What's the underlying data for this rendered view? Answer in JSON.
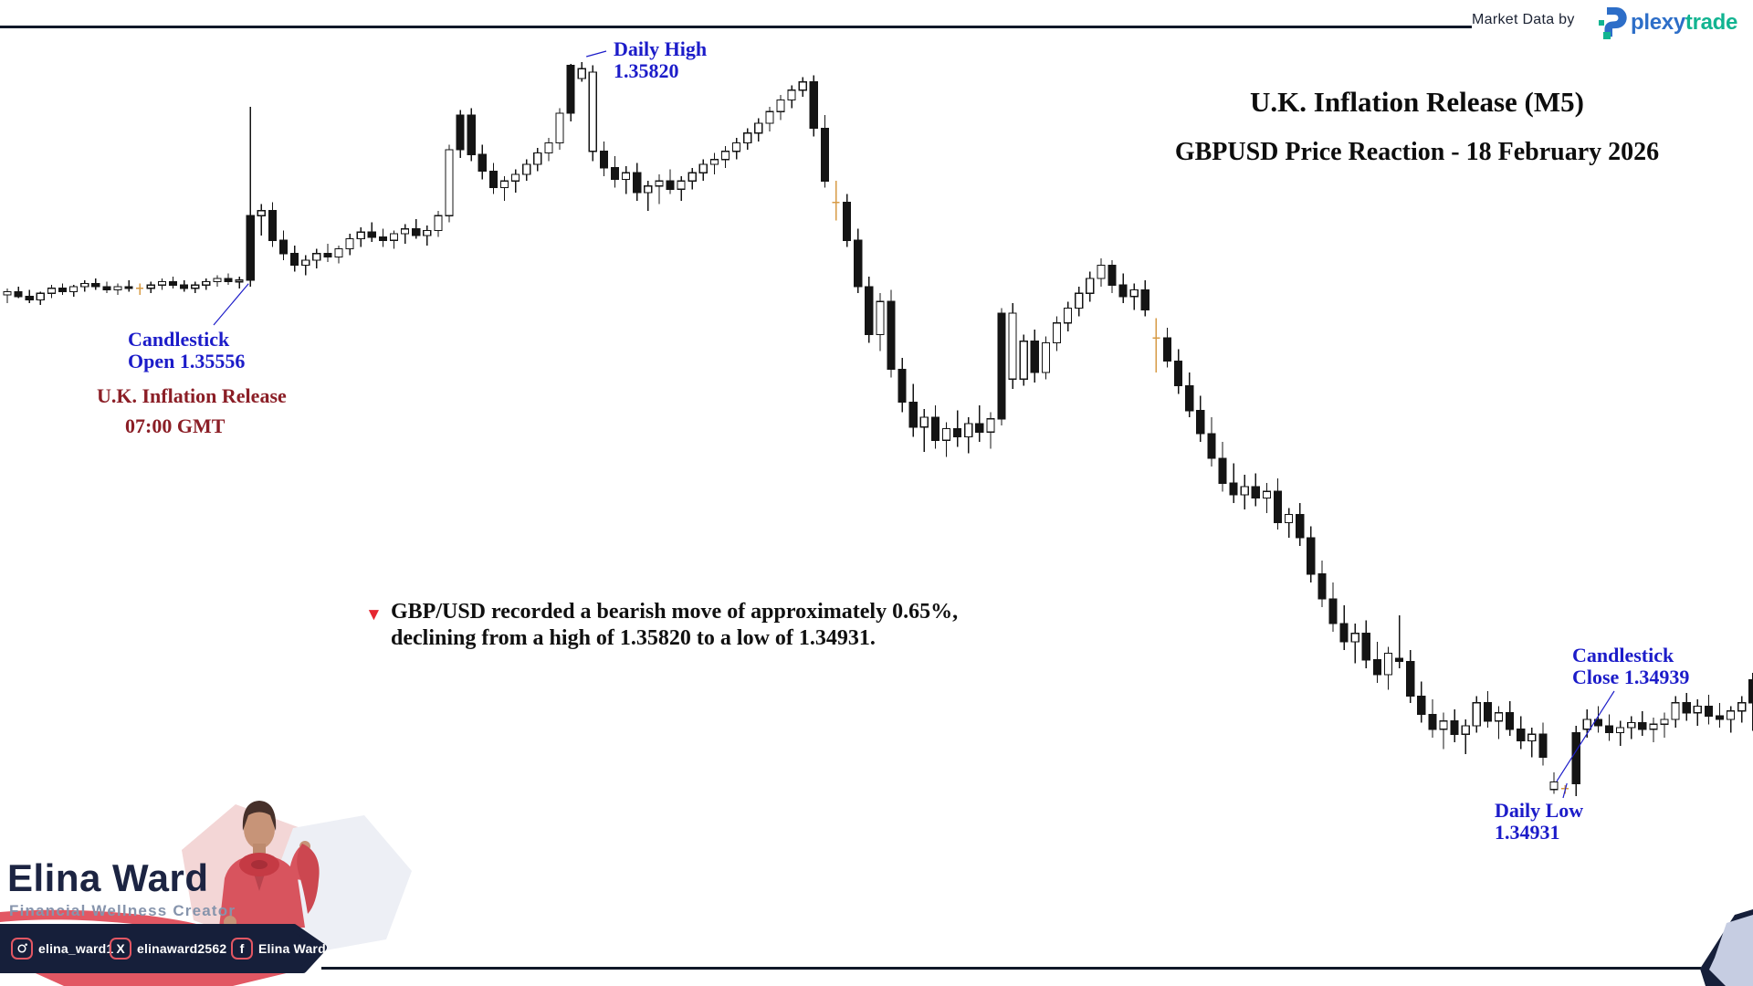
{
  "header": {
    "market_data_label": "Market Data by",
    "logo": {
      "word_blue": "plexy",
      "word_green": "trade"
    },
    "title": "U.K. Inflation Release (M5)",
    "subtitle": "GBPUSD Price Reaction - 18 February 2026"
  },
  "annotations": {
    "daily_high": {
      "line1": "Daily High",
      "line2": "1.35820"
    },
    "open": {
      "line1": "Candlestick",
      "line2": "Open 1.35556"
    },
    "event": {
      "line1": "U.K. Inflation Release",
      "line2": "07:00 GMT"
    },
    "note": {
      "marker": "▼",
      "line1": "GBP/USD recorded a bearish move of approximately 0.65%,",
      "line2": "declining from a high of 1.35820 to a low of 1.34931."
    },
    "close": {
      "line1": "Candlestick",
      "line2": "Close 1.34939"
    },
    "daily_low": {
      "line1": "Daily Low",
      "line2": "1.34931"
    }
  },
  "branding": {
    "name": "Elina Ward",
    "role": "Financial Wellness Creator",
    "socials": [
      {
        "icon": "instagram-icon",
        "label": "elina_ward1"
      },
      {
        "icon": "x-icon",
        "label": "elinaward2562"
      },
      {
        "icon": "facebook-icon",
        "label": "Elina Ward"
      }
    ]
  },
  "colors": {
    "annotation_blue": "#1c1cc9",
    "event_maroon": "#8b1e26",
    "note_red": "#e52630",
    "candle_dark": "#141414",
    "doji_orange": "#d79b45",
    "brand_navy": "#1c2442",
    "brand_slate": "#8694ac",
    "accent_salmon": "#e25763",
    "pill_navy": "#161f3a",
    "logo_blue": "#2d6ec8",
    "logo_green": "#12b491"
  },
  "chart_data": {
    "type": "candlestick",
    "symbol": "GBPUSD",
    "timeframe": "M5",
    "event": "U.K. Inflation Release",
    "event_time": "07:00 GMT",
    "date": "18 February 2026",
    "daily_high": 1.3582,
    "daily_low": 1.34931,
    "release_open": 1.35556,
    "low_candle_close": 1.34939,
    "move_percent": -0.65,
    "key_candles": {
      "release": 22,
      "daily_high": 52,
      "close": 140,
      "daily_low": 142
    },
    "candles": [
      [
        1.35538,
        1.35546,
        1.35528,
        1.35542
      ],
      [
        1.35542,
        1.35548,
        1.35534,
        1.35536
      ],
      [
        1.35536,
        1.35544,
        1.35528,
        1.35532
      ],
      [
        1.35532,
        1.35542,
        1.35526,
        1.3554
      ],
      [
        1.3554,
        1.3555,
        1.35534,
        1.35546
      ],
      [
        1.35546,
        1.35552,
        1.35538,
        1.35542
      ],
      [
        1.35542,
        1.3555,
        1.35536,
        1.35548
      ],
      [
        1.35548,
        1.35556,
        1.35542,
        1.35552
      ],
      [
        1.35552,
        1.35558,
        1.35544,
        1.35548
      ],
      [
        1.35548,
        1.35554,
        1.3554,
        1.35544
      ],
      [
        1.35544,
        1.35552,
        1.35538,
        1.35548
      ],
      [
        1.35548,
        1.35556,
        1.35542,
        1.35546
      ],
      [
        1.35546,
        1.35552,
        1.35538,
        1.35546,
        "orange"
      ],
      [
        1.35546,
        1.35554,
        1.3554,
        1.3555
      ],
      [
        1.3555,
        1.35558,
        1.35544,
        1.35554
      ],
      [
        1.35554,
        1.3556,
        1.35546,
        1.3555
      ],
      [
        1.3555,
        1.35556,
        1.35542,
        1.35546
      ],
      [
        1.35546,
        1.35554,
        1.3554,
        1.3555
      ],
      [
        1.3555,
        1.35558,
        1.35544,
        1.35554
      ],
      [
        1.35554,
        1.35562,
        1.35548,
        1.35558
      ],
      [
        1.35558,
        1.35564,
        1.3555,
        1.35554
      ],
      [
        1.35554,
        1.3556,
        1.35546,
        1.35556
      ],
      [
        1.35556,
        1.35766,
        1.35548,
        1.35634,
        "filled"
      ],
      [
        1.35634,
        1.35648,
        1.3561,
        1.3564
      ],
      [
        1.3564,
        1.3565,
        1.35596,
        1.35604
      ],
      [
        1.35604,
        1.35616,
        1.3558,
        1.35588
      ],
      [
        1.35588,
        1.35598,
        1.35566,
        1.35574
      ],
      [
        1.35574,
        1.35586,
        1.35562,
        1.3558
      ],
      [
        1.3558,
        1.35594,
        1.3557,
        1.35588
      ],
      [
        1.35588,
        1.356,
        1.35578,
        1.35584
      ],
      [
        1.35584,
        1.35598,
        1.35576,
        1.35594
      ],
      [
        1.35594,
        1.35612,
        1.35586,
        1.35606
      ],
      [
        1.35606,
        1.3562,
        1.35596,
        1.35614
      ],
      [
        1.35614,
        1.35626,
        1.35602,
        1.35608
      ],
      [
        1.35608,
        1.35618,
        1.35596,
        1.35604
      ],
      [
        1.35604,
        1.35616,
        1.35594,
        1.35612
      ],
      [
        1.35612,
        1.35624,
        1.356,
        1.35618
      ],
      [
        1.35618,
        1.3563,
        1.35606,
        1.3561
      ],
      [
        1.3561,
        1.35622,
        1.35598,
        1.35616
      ],
      [
        1.35616,
        1.3564,
        1.35608,
        1.35634
      ],
      [
        1.35634,
        1.3572,
        1.35626,
        1.35714
      ],
      [
        1.35714,
        1.35762,
        1.35704,
        1.35756,
        "filled"
      ],
      [
        1.35756,
        1.35764,
        1.357,
        1.35708
      ],
      [
        1.35708,
        1.3572,
        1.35678,
        1.35688
      ],
      [
        1.35688,
        1.35698,
        1.3566,
        1.35668
      ],
      [
        1.35668,
        1.35682,
        1.35652,
        1.35676
      ],
      [
        1.35676,
        1.3569,
        1.35662,
        1.35684
      ],
      [
        1.35684,
        1.35702,
        1.35676,
        1.35696
      ],
      [
        1.35696,
        1.35716,
        1.35688,
        1.3571
      ],
      [
        1.3571,
        1.35728,
        1.357,
        1.35722
      ],
      [
        1.35722,
        1.35764,
        1.35714,
        1.35758
      ],
      [
        1.35758,
        1.35818,
        1.35748,
        1.35816,
        "filled"
      ],
      [
        1.358,
        1.3582,
        1.35796,
        1.35812
      ],
      [
        1.35808,
        1.35816,
        1.357,
        1.35712,
        "hollow"
      ],
      [
        1.35712,
        1.35724,
        1.35682,
        1.35692
      ],
      [
        1.35692,
        1.35706,
        1.35668,
        1.35678
      ],
      [
        1.35678,
        1.35694,
        1.3566,
        1.35686
      ],
      [
        1.35686,
        1.35698,
        1.35652,
        1.35662
      ],
      [
        1.35662,
        1.35676,
        1.3564,
        1.3567
      ],
      [
        1.3567,
        1.35684,
        1.35648,
        1.35676
      ],
      [
        1.35676,
        1.3569,
        1.3566,
        1.35666
      ],
      [
        1.35666,
        1.35682,
        1.35652,
        1.35676
      ],
      [
        1.35676,
        1.35692,
        1.35666,
        1.35686
      ],
      [
        1.35686,
        1.35702,
        1.35676,
        1.35696
      ],
      [
        1.35696,
        1.3571,
        1.35684,
        1.35702
      ],
      [
        1.35702,
        1.35718,
        1.35692,
        1.35712
      ],
      [
        1.35712,
        1.35728,
        1.35702,
        1.35722
      ],
      [
        1.35722,
        1.3574,
        1.35714,
        1.35734
      ],
      [
        1.35734,
        1.35752,
        1.35724,
        1.35746
      ],
      [
        1.35746,
        1.35766,
        1.35736,
        1.3576
      ],
      [
        1.3576,
        1.3578,
        1.3575,
        1.35774
      ],
      [
        1.35774,
        1.35792,
        1.35764,
        1.35786
      ],
      [
        1.35786,
        1.35802,
        1.35778,
        1.35796
      ],
      [
        1.35796,
        1.35804,
        1.3573,
        1.3574
      ],
      [
        1.3574,
        1.35756,
        1.35668,
        1.35676
      ],
      [
        1.3565,
        1.35676,
        1.35628,
        1.3565,
        "orange"
      ],
      [
        1.3565,
        1.3566,
        1.35596,
        1.35604
      ],
      [
        1.35604,
        1.35618,
        1.3554,
        1.35548
      ],
      [
        1.35548,
        1.3556,
        1.3548,
        1.3549
      ],
      [
        1.3549,
        1.3554,
        1.3547,
        1.3553
      ],
      [
        1.3553,
        1.35544,
        1.35438,
        1.35448
      ],
      [
        1.35448,
        1.35462,
        1.35396,
        1.35408
      ],
      [
        1.35408,
        1.3543,
        1.35366,
        1.35378
      ],
      [
        1.35378,
        1.354,
        1.35348,
        1.3539
      ],
      [
        1.3539,
        1.35404,
        1.35352,
        1.35362
      ],
      [
        1.35362,
        1.35384,
        1.35342,
        1.35376
      ],
      [
        1.35376,
        1.35398,
        1.35354,
        1.35366
      ],
      [
        1.35366,
        1.3539,
        1.35346,
        1.35382
      ],
      [
        1.35382,
        1.35404,
        1.3536,
        1.35372
      ],
      [
        1.35372,
        1.35396,
        1.35352,
        1.35388
      ],
      [
        1.35388,
        1.35522,
        1.3538,
        1.35516,
        "filled"
      ],
      [
        1.35516,
        1.35528,
        1.35424,
        1.35436,
        "hollow"
      ],
      [
        1.35436,
        1.3549,
        1.35428,
        1.35482
      ],
      [
        1.35482,
        1.35496,
        1.35432,
        1.35444
      ],
      [
        1.35444,
        1.35488,
        1.35436,
        1.3548
      ],
      [
        1.3548,
        1.35512,
        1.3547,
        1.35504
      ],
      [
        1.35504,
        1.3553,
        1.35494,
        1.35522
      ],
      [
        1.35522,
        1.35548,
        1.35512,
        1.3554
      ],
      [
        1.3554,
        1.35566,
        1.3553,
        1.35558
      ],
      [
        1.35558,
        1.35582,
        1.35548,
        1.35574
      ],
      [
        1.35574,
        1.3558,
        1.3554,
        1.3555
      ],
      [
        1.3555,
        1.35564,
        1.35528,
        1.35536
      ],
      [
        1.35536,
        1.35552,
        1.3552,
        1.35544
      ],
      [
        1.35544,
        1.35556,
        1.35512,
        1.3552
      ],
      [
        1.35486,
        1.3551,
        1.35444,
        1.35486,
        "orange"
      ],
      [
        1.35486,
        1.35498,
        1.3545,
        1.35458
      ],
      [
        1.35458,
        1.35472,
        1.35418,
        1.35428
      ],
      [
        1.35428,
        1.35444,
        1.3539,
        1.35398
      ],
      [
        1.35398,
        1.35416,
        1.3536,
        1.3537
      ],
      [
        1.3537,
        1.3539,
        1.3533,
        1.3534
      ],
      [
        1.3534,
        1.3536,
        1.353,
        1.3531
      ],
      [
        1.3531,
        1.35334,
        1.35286,
        1.35296
      ],
      [
        1.35296,
        1.3532,
        1.35278,
        1.35306
      ],
      [
        1.35306,
        1.35322,
        1.35282,
        1.35292
      ],
      [
        1.35292,
        1.3531,
        1.35274,
        1.353
      ],
      [
        1.353,
        1.35316,
        1.35254,
        1.35262
      ],
      [
        1.35262,
        1.3528,
        1.35244,
        1.35272
      ],
      [
        1.35272,
        1.35286,
        1.35234,
        1.35244
      ],
      [
        1.35244,
        1.35258,
        1.3519,
        1.352
      ],
      [
        1.352,
        1.35216,
        1.3516,
        1.3517
      ],
      [
        1.3517,
        1.3519,
        1.3513,
        1.3514
      ],
      [
        1.3514,
        1.35162,
        1.35108,
        1.35118
      ],
      [
        1.35118,
        1.3514,
        1.35092,
        1.35128
      ],
      [
        1.35128,
        1.35144,
        1.35086,
        1.35096
      ],
      [
        1.35096,
        1.35118,
        1.35068,
        1.35078
      ],
      [
        1.35078,
        1.35112,
        1.3506,
        1.35104
      ],
      [
        1.35098,
        1.3515,
        1.35086,
        1.35094
      ],
      [
        1.35094,
        1.35108,
        1.35044,
        1.35052
      ],
      [
        1.35052,
        1.3507,
        1.3502,
        1.3503
      ],
      [
        1.3503,
        1.35048,
        1.35002,
        1.35012
      ],
      [
        1.35012,
        1.35032,
        1.34988,
        1.35022
      ],
      [
        1.35022,
        1.35036,
        1.34996,
        1.35006
      ],
      [
        1.35006,
        1.35024,
        1.34982,
        1.35016
      ],
      [
        1.35016,
        1.35052,
        1.35008,
        1.35044
      ],
      [
        1.35044,
        1.35058,
        1.35014,
        1.35022
      ],
      [
        1.35022,
        1.3504,
        1.35,
        1.35032
      ],
      [
        1.35032,
        1.35046,
        1.35004,
        1.35012
      ],
      [
        1.35012,
        1.35028,
        1.34988,
        1.34998
      ],
      [
        1.34998,
        1.35014,
        1.34978,
        1.35006
      ],
      [
        1.35006,
        1.3502,
        1.34968,
        1.34978
      ],
      [
        1.34948,
        1.3496,
        1.34934,
        1.34939,
        "hollow"
      ],
      [
        1.3494,
        1.34944,
        1.34934,
        1.3494,
        "orange"
      ],
      [
        1.35008,
        1.35016,
        1.34931,
        1.34946,
        "filled"
      ],
      [
        1.35012,
        1.35036,
        1.35002,
        1.35024
      ],
      [
        1.35024,
        1.3504,
        1.35008,
        1.35016
      ],
      [
        1.35016,
        1.3503,
        1.34998,
        1.35008
      ],
      [
        1.35008,
        1.35022,
        1.34992,
        1.35014
      ],
      [
        1.35014,
        1.35028,
        1.35,
        1.3502
      ],
      [
        1.3502,
        1.35034,
        1.35004,
        1.35012
      ],
      [
        1.35012,
        1.35026,
        1.34996,
        1.35018
      ],
      [
        1.35018,
        1.35032,
        1.35002,
        1.35024
      ],
      [
        1.35024,
        1.35052,
        1.35014,
        1.35044
      ],
      [
        1.35044,
        1.35056,
        1.35022,
        1.35032
      ],
      [
        1.35032,
        1.35048,
        1.35016,
        1.3504
      ],
      [
        1.3504,
        1.35054,
        1.35018,
        1.35028
      ],
      [
        1.35028,
        1.35044,
        1.35014,
        1.35024
      ],
      [
        1.35024,
        1.3504,
        1.35008,
        1.35034
      ],
      [
        1.35034,
        1.35052,
        1.3502,
        1.35044
      ],
      [
        1.35044,
        1.3508,
        1.3501,
        1.35072,
        "filled"
      ]
    ]
  }
}
